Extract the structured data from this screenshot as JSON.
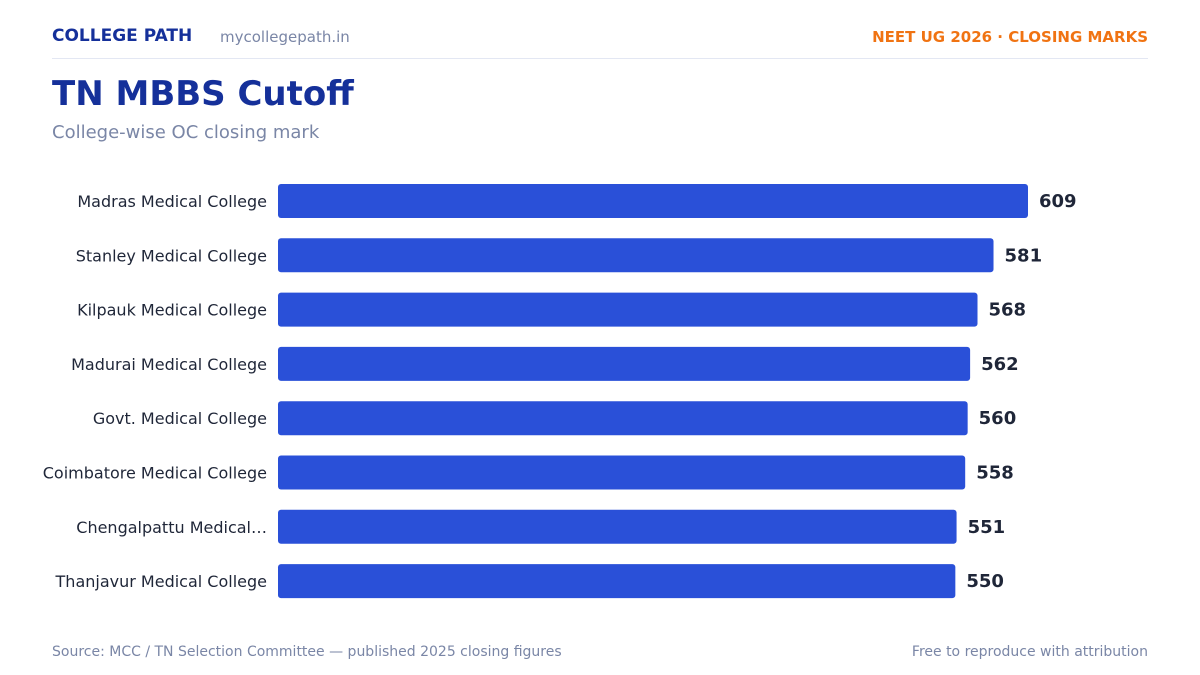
{
  "header": {
    "brand": "COLLEGE PATH",
    "site": "mycollegepath.in",
    "tag": "NEET UG 2026 · CLOSING MARKS"
  },
  "title": "TN MBBS Cutoff",
  "subtitle": "College-wise OC closing mark",
  "footer": {
    "source": "Source: MCC / TN Selection Committee — published 2025 closing figures",
    "license": "Free to reproduce with attribution"
  },
  "colors": {
    "bar": "#2a50d8",
    "brand": "#15309a",
    "accent": "#f07312"
  },
  "chart_data": {
    "type": "bar",
    "orientation": "horizontal",
    "categories": [
      "Madras Medical College",
      "Stanley Medical College",
      "Kilpauk Medical College",
      "Madurai Medical College",
      "Govt. Medical College",
      "Coimbatore Medical College",
      "Chengalpattu Medical…",
      "Thanjavur Medical College"
    ],
    "values": [
      609,
      581,
      568,
      562,
      560,
      558,
      551,
      550
    ],
    "xlim": [
      0,
      609
    ],
    "grid": false,
    "data_labels": true
  }
}
